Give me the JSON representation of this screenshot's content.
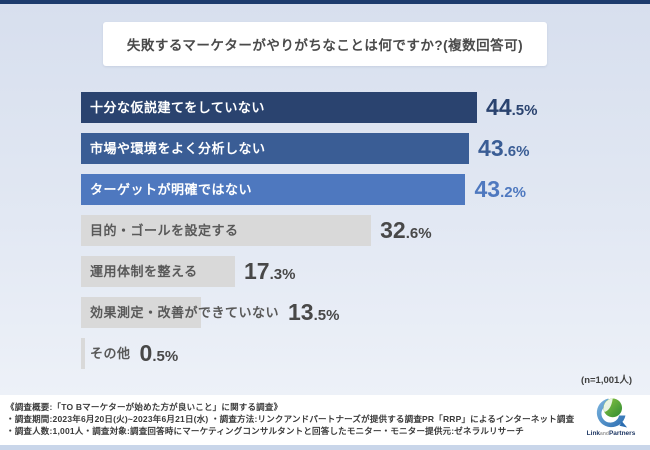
{
  "chart_data": {
    "type": "bar",
    "orientation": "horizontal",
    "title": "失敗するマーケターがやりがちなことは何ですか?(複数回答可)",
    "categories": [
      "十分な仮説建てをしていない",
      "市場や環境をよく分析しない",
      "ターゲットが明確ではない",
      "目的・ゴールを設定する",
      "運用体制を整える",
      "効果測定・改善ができていない",
      "その他"
    ],
    "values": [
      44.5,
      43.6,
      43.2,
      32.6,
      17.3,
      13.5,
      0.5
    ],
    "unit": "%",
    "value_labels": [
      "44.5%",
      "43.6%",
      "43.2%",
      "32.6%",
      "17.3%",
      "13.5%",
      "0.5%"
    ],
    "xlim": [
      0,
      50
    ],
    "grid": false,
    "legend": "none",
    "sample_label": "(n=1,001人)",
    "bar_colors": [
      "#2a436f",
      "#3a5d95",
      "#4e78bf",
      "#d9d9d9",
      "#d9d9d9",
      "#d9d9d9",
      "#d9d9d9"
    ],
    "label_colors": [
      "#ffffff",
      "#ffffff",
      "#ffffff",
      "#595959",
      "#595959",
      "#595959",
      "#595959"
    ],
    "value_colors": [
      "#2a436f",
      "#3a5d95",
      "#4e78bf",
      "#484848",
      "#484848",
      "#484848",
      "#484848"
    ]
  },
  "footer": {
    "lines": [
      "《調査概要:「TO Bマーケターが始めた方が良いこと」に関する調査》",
      "・調査期間:2023年6月20日(火)~2023年6月21日(水) ・調査方法:リンクアンドパートナーズが提供する調査PR「RRP」によるインターネット調査",
      "・調査人数:1,001人・調査対象:調査回答時にマーケティングコンサルタントと回答したモニター・モニター提供元:ゼネラルリサーチ"
    ],
    "logo": {
      "link": "Link",
      "and": "and",
      "partners": "Partners"
    }
  },
  "colors": {
    "top_strip": "#1c3b6d",
    "panel_bg_top": "#d7dfee",
    "panel_bg_bottom": "#edf1f8",
    "bottom_strip": "#c9d6ea",
    "logo_green": "#5aa932",
    "logo_blue": "#3d7fc1"
  }
}
